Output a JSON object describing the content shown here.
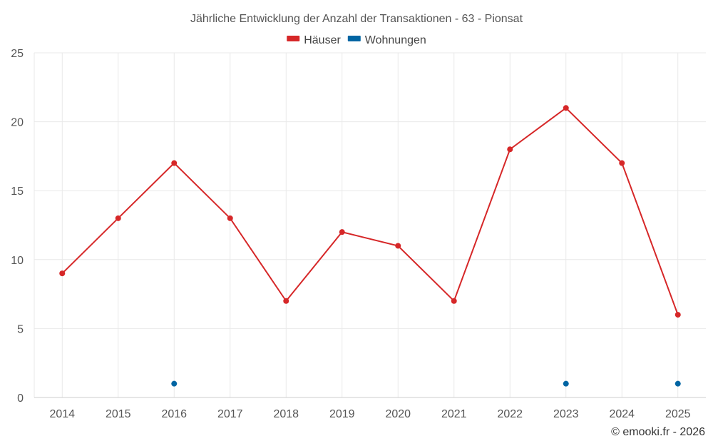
{
  "chart_data": {
    "type": "line",
    "title": "Jährliche Entwicklung der Anzahl der Transaktionen - 63 - Pionsat",
    "xlabel": "",
    "ylabel": "",
    "categories": [
      "2014",
      "2015",
      "2016",
      "2017",
      "2018",
      "2019",
      "2020",
      "2021",
      "2022",
      "2023",
      "2024",
      "2025"
    ],
    "ylim": [
      0,
      25
    ],
    "yticks": [
      "0",
      "5",
      "10",
      "15",
      "20",
      "25"
    ],
    "grid": true,
    "legend_position": "top-center",
    "series": [
      {
        "name": "Häuser",
        "color": "#d62728",
        "values": [
          9,
          13,
          17,
          13,
          7,
          12,
          11,
          7,
          18,
          21,
          17,
          6
        ]
      },
      {
        "name": "Wohnungen",
        "color": "#0065a3",
        "values": [
          null,
          null,
          1,
          null,
          null,
          null,
          null,
          null,
          null,
          1,
          null,
          1
        ]
      }
    ]
  },
  "credit": "© emooki.fr - 2026"
}
